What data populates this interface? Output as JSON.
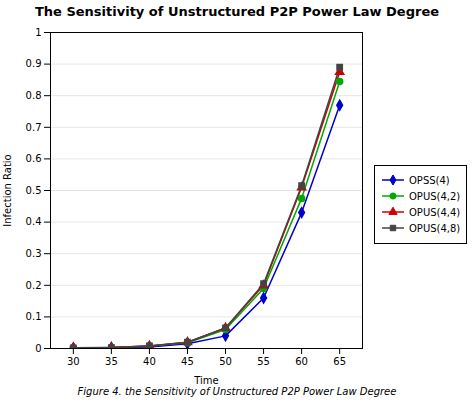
{
  "chart_data": {
    "type": "line",
    "title": "The Sensitivity of Unstructured P2P Power Law Degree",
    "xlabel": "Time",
    "ylabel": "Infection Ratio",
    "caption": "Figure 4. the Sensitivity of Unstructured P2P Power Law Degree",
    "x": [
      30,
      35,
      40,
      45,
      50,
      55,
      60,
      65
    ],
    "series": [
      {
        "name": "OPSS(4)",
        "color": "#0000CC",
        "marker": "diamond",
        "values": [
          0.002,
          0.003,
          0.005,
          0.015,
          0.04,
          0.16,
          0.43,
          0.77
        ]
      },
      {
        "name": "OPUS(4,2)",
        "color": "#00AA00",
        "marker": "circle",
        "values": [
          0.002,
          0.003,
          0.008,
          0.018,
          0.06,
          0.19,
          0.475,
          0.845
        ]
      },
      {
        "name": "OPUS(4,4)",
        "color": "#CC0000",
        "marker": "triangle",
        "values": [
          0.002,
          0.003,
          0.008,
          0.02,
          0.065,
          0.2,
          0.51,
          0.875
        ]
      },
      {
        "name": "OPUS(4,8)",
        "color": "#444444",
        "marker": "square",
        "values": [
          0.002,
          0.003,
          0.008,
          0.02,
          0.065,
          0.205,
          0.515,
          0.89
        ]
      }
    ],
    "xlim": [
      27,
      68
    ],
    "ylim": [
      0,
      1
    ],
    "xticks": [
      30,
      35,
      40,
      45,
      50,
      55,
      60,
      65
    ],
    "yticks": [
      0,
      0.1,
      0.2,
      0.3,
      0.4,
      0.5,
      0.6,
      0.7,
      0.8,
      0.9,
      1
    ],
    "grid": true,
    "legend": "right"
  }
}
